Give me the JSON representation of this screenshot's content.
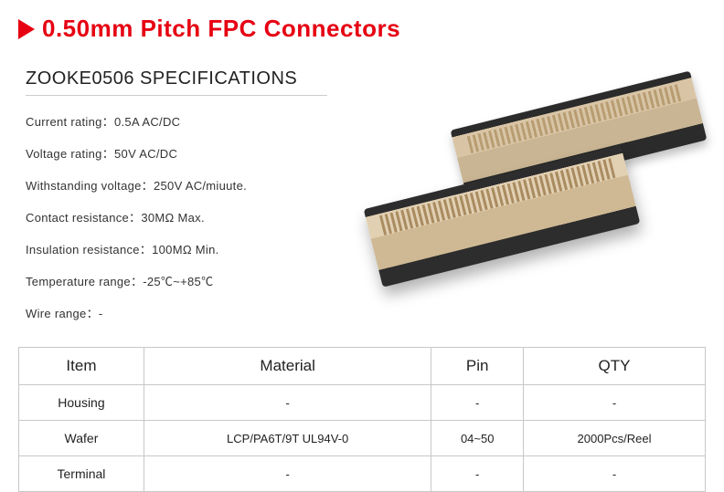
{
  "accent_color": "#e60012",
  "title": "0.50mm Pitch FPC Connectors",
  "spec_heading": "ZOOKE0506 SPECIFICATIONS",
  "specs": [
    "Current rating：0.5A AC/DC",
    "Voltage rating：50V AC/DC",
    "Withstanding voltage：250V AC/miuute.",
    "Contact resistance：30MΩ Max.",
    "Insulation resistance：100MΩ Min.",
    "Temperature range：-25℃~+85℃",
    "Wire range：-"
  ],
  "table": {
    "columns": [
      "Item",
      "Material",
      "Pin",
      "QTY"
    ],
    "rows": [
      [
        "Housing",
        "-",
        "-",
        "-"
      ],
      [
        "Wafer",
        "LCP/PA6T/9T UL94V-0",
        "04~50",
        "2000Pcs/Reel"
      ],
      [
        "Terminal",
        "-",
        "-",
        "-"
      ]
    ],
    "border_color": "#c8c8c8",
    "header_fontsize": 17,
    "cell_fontsize": 13
  },
  "product_image": {
    "type": "photo-approximation",
    "body_color": "#d9c5a6",
    "edge_color": "#2b2b2b",
    "pin_color": "#a98c60"
  }
}
